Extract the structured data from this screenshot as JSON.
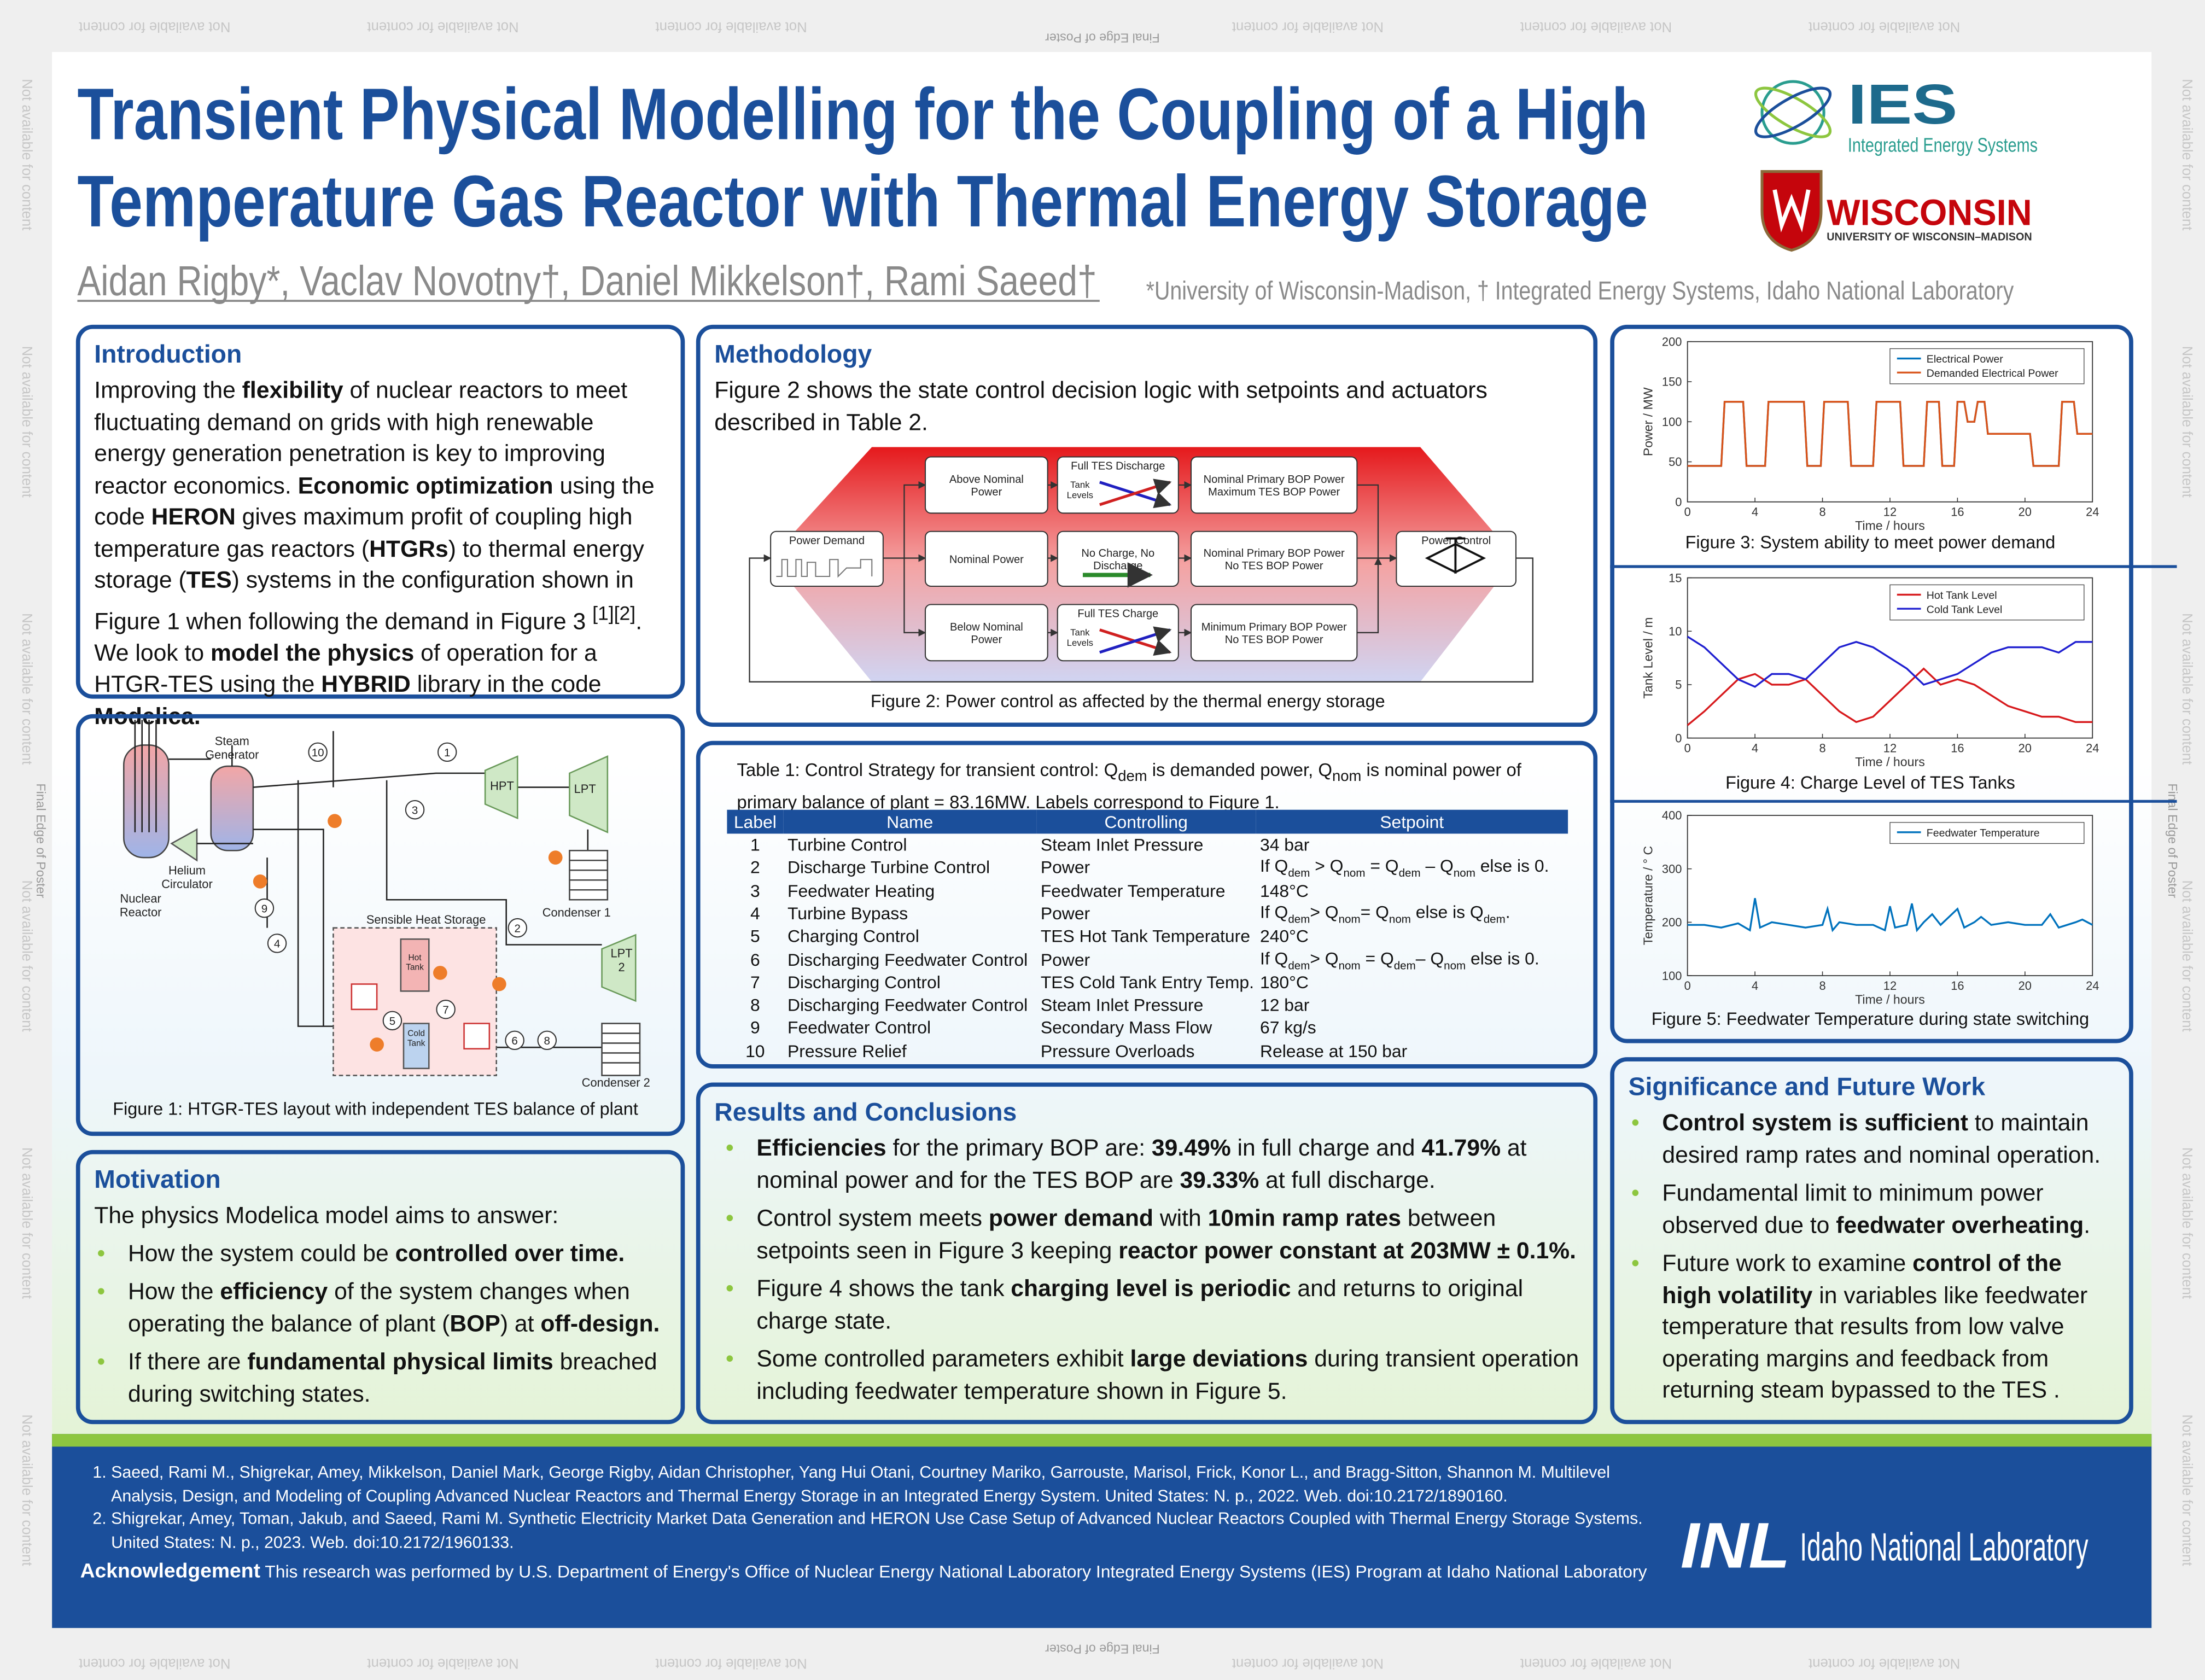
{
  "margins": {
    "edge": "Final Edge of Poster",
    "note": "Not available for content"
  },
  "header": {
    "title_line1": "Transient Physical Modelling for the Coupling of a High",
    "title_line2": "Temperature Gas Reactor with Thermal Energy Storage",
    "authors": "Aidan Rigby*, Vaclav Novotny†, Daniel Mikkelson†, Rami Saeed†",
    "affiliations": "*University of Wisconsin-Madison, † Integrated Energy Systems, Idaho National Laboratory",
    "ies_logo": "IES",
    "ies_name": "Integrated Energy Systems",
    "uw_logo": "WISCONSIN",
    "uw_name": "UNIVERSITY OF WISCONSIN–MADISON"
  },
  "introduction": {
    "heading": "Introduction",
    "body": [
      "Improving the ",
      {
        "bold": "flexibility"
      },
      " of nuclear reactors to meet fluctuating demand on grids with high renewable energy generation penetration is key to improving reactor economics. ",
      {
        "bold": "Economic optimization"
      },
      " using the code ",
      {
        "bold": "HERON"
      },
      " gives maximum profit of coupling high temperature gas reactors (",
      {
        "bold": "HTGRs"
      },
      ") to thermal energy storage (",
      {
        "bold": "TES"
      },
      ") systems in the configuration shown in Figure 1 when following the demand in Figure 3 ",
      {
        "sup": "[1][2]"
      },
      ". We look to ",
      {
        "bold": "model the physics"
      },
      " of operation for a HTGR-TES using the ",
      {
        "bold": "HYBRID"
      },
      " library in the code ",
      {
        "bold": "Modelica."
      }
    ]
  },
  "figure1": {
    "caption": "Figure 1: HTGR-TES layout with independent TES balance of plant",
    "labels": [
      [
        "Steam",
        "Generator"
      ],
      [
        "Helium",
        "Circulator"
      ],
      [
        "Nuclear",
        "Reactor"
      ],
      [
        "HPT"
      ],
      [
        "LPT"
      ],
      [
        "Condenser 1"
      ],
      [
        "Sensible Heat Storage"
      ],
      [
        "Hot",
        "Tank"
      ],
      [
        "Cold",
        "Tank"
      ],
      [
        "LPT",
        "2"
      ],
      [
        "Condenser 2"
      ]
    ],
    "valves": [
      1,
      2,
      3,
      4,
      5,
      6,
      7,
      8,
      9,
      10
    ]
  },
  "motivation": {
    "heading": "Motivation",
    "intro": "The physics Modelica model aims to answer:",
    "bullets": [
      [
        "How the system could be ",
        {
          "bold": "controlled over time."
        }
      ],
      [
        "How the ",
        {
          "bold": "efficiency"
        },
        " of the system changes when operating the balance of plant (",
        {
          "bold": "BOP"
        },
        ") at ",
        {
          "bold": "off-design."
        }
      ],
      [
        "If there are ",
        {
          "bold": "fundamental physical limits"
        },
        " breached during switching states."
      ]
    ]
  },
  "methodology": {
    "heading": "Methodology",
    "body": "Figure 2 shows the state control decision logic with setpoints and actuators described in Table 2.",
    "caption": "Figure 2: Power control as affected by the thermal energy storage",
    "nodes": [
      [
        "Power Demand"
      ],
      [
        "Above Nominal",
        "Power"
      ],
      [
        "Nominal Power"
      ],
      [
        "Below Nominal",
        "Power"
      ],
      [
        "Full TES Discharge"
      ],
      [
        "No Charge, No",
        "Discharge"
      ],
      [
        "Full TES Charge"
      ],
      [
        "Nominal Primary BOP Power",
        "Maximum TES BOP Power"
      ],
      [
        "Nominal Primary BOP Power",
        "No TES BOP Power"
      ],
      [
        "Minimum Primary BOP Power",
        "No TES BOP Power"
      ],
      [
        "Power Control"
      ]
    ],
    "tank_levels": [
      "Tank",
      "Levels"
    ]
  },
  "table": {
    "caption": [
      "Table 1: Control Strategy for transient control: Q",
      {
        "sub": "dem"
      },
      " is demanded power, Q",
      {
        "sub": "nom"
      },
      " is nominal power of primary balance of plant = 83.16MW. Labels correspond to Figure 1."
    ],
    "header": [
      "Label",
      "Name",
      "Controlling",
      "Setpoint"
    ],
    "rows": [
      [
        1,
        "Turbine Control",
        "Steam Inlet Pressure",
        "34 bar"
      ],
      [
        2,
        "Discharge Turbine Control",
        "Power",
        [
          "If Q",
          {
            "sub": "dem"
          },
          " > Q",
          {
            "sub": "nom"
          },
          " = Q",
          {
            "sub": "dem"
          },
          " – Q",
          {
            "sub": "nom"
          },
          " else is 0."
        ]
      ],
      [
        3,
        "Feedwater Heating",
        "Feedwater Temperature",
        "148°C"
      ],
      [
        4,
        "Turbine Bypass",
        "Power",
        [
          "If Q",
          {
            "sub": "dem"
          },
          "> Q",
          {
            "sub": "nom"
          },
          "= Q",
          {
            "sub": "nom"
          },
          " else is Q",
          {
            "sub": "dem"
          },
          "."
        ]
      ],
      [
        5,
        "Charging Control",
        "TES Hot Tank Temperature",
        "240°C"
      ],
      [
        6,
        "Discharging Feedwater Control",
        "Power",
        [
          "If Q",
          {
            "sub": "dem"
          },
          "> Q",
          {
            "sub": "nom"
          },
          " = Q",
          {
            "sub": "dem"
          },
          "– Q",
          {
            "sub": "nom"
          },
          " else is 0."
        ]
      ],
      [
        7,
        "Discharging Control",
        "TES Cold Tank Entry Temp.",
        "180°C"
      ],
      [
        8,
        "Discharging Feedwater Control",
        "Steam Inlet Pressure",
        "12 bar"
      ],
      [
        9,
        "Feedwater Control",
        "Secondary Mass Flow",
        "67 kg/s"
      ],
      [
        10,
        "Pressure Relief",
        "Pressure Overloads",
        "Release at 150 bar"
      ]
    ]
  },
  "results": {
    "heading": "Results and Conclusions",
    "bullets": [
      [
        {
          "bold": "Efficiencies"
        },
        " for the primary BOP are: ",
        {
          "bold": "39.49%"
        },
        " in full charge and ",
        {
          "bold": "41.79%"
        },
        " at nominal power and for the TES BOP are ",
        {
          "bold": "39.33%"
        },
        " at full discharge."
      ],
      [
        "Control system meets ",
        {
          "bold": "power demand"
        },
        " with ",
        {
          "bold": "10min ramp rates"
        },
        " between setpoints seen in Figure 3 keeping ",
        {
          "bold": "reactor power constant at 203MW ± 0.1%."
        }
      ],
      [
        "Figure 4 shows the tank ",
        {
          "bold": "charging level is periodic"
        },
        " and returns to original charge state."
      ],
      [
        "Some controlled parameters exhibit ",
        {
          "bold": "large deviations"
        },
        " during transient operation including feedwater temperature shown in Figure 5."
      ]
    ]
  },
  "significance": {
    "heading": "Significance and Future Work",
    "bullets": [
      [
        {
          "bold": "Control system is sufficient"
        },
        " to maintain desired ramp rates and nominal operation."
      ],
      [
        "Fundamental limit to minimum power observed due to ",
        {
          "bold": "feedwater overheating"
        },
        "."
      ],
      [
        "Future work to examine ",
        {
          "bold": "control of the high volatility"
        },
        " in variables like feedwater temperature that results from low valve operating margins and feedback from returning steam bypassed to the TES ."
      ]
    ]
  },
  "chart_data": [
    {
      "type": "line",
      "caption": "Figure 3: System ability to meet power demand",
      "xlabel": "Time / hours",
      "ylabel": "Power / MW",
      "x": [
        0,
        2.0,
        2.2,
        3.3,
        3.5,
        4.6,
        4.8,
        6.9,
        7.1,
        7.9,
        8.1,
        9.5,
        9.7,
        11.0,
        11.2,
        12.6,
        12.8,
        14.0,
        14.2,
        14.9,
        15.1,
        15.8,
        16.0,
        16.4,
        16.6,
        17.0,
        17.2,
        17.6,
        17.8,
        19.6,
        19.8,
        20.3,
        20.5,
        22.0,
        22.2,
        22.9,
        23.1,
        24
      ],
      "series": [
        {
          "name": "Electrical Power",
          "color": "#0072bd",
          "values": [
            45,
            45,
            125,
            125,
            45,
            45,
            125,
            125,
            45,
            45,
            125,
            125,
            45,
            45,
            125,
            125,
            45,
            45,
            125,
            125,
            45,
            45,
            125,
            125,
            100,
            100,
            125,
            125,
            85,
            85,
            85,
            85,
            45,
            45,
            125,
            125,
            85,
            85
          ]
        },
        {
          "name": "Demanded Electrical Power",
          "color": "#d95319",
          "values": [
            45,
            45,
            125,
            125,
            45,
            45,
            125,
            125,
            45,
            45,
            125,
            125,
            45,
            45,
            125,
            125,
            45,
            45,
            125,
            125,
            45,
            45,
            125,
            125,
            100,
            100,
            125,
            125,
            85,
            85,
            85,
            85,
            45,
            45,
            125,
            125,
            85,
            85
          ]
        }
      ],
      "xlim": [
        0,
        24
      ],
      "ylim": [
        0,
        200
      ],
      "xticks": [
        0,
        4,
        8,
        12,
        16,
        20,
        24
      ],
      "yticks": [
        0,
        50,
        100,
        150,
        200
      ],
      "legend": "upper right"
    },
    {
      "type": "line",
      "caption": "Figure 4: Charge Level of TES Tanks",
      "xlabel": "Time / hours",
      "ylabel": "Tank Level / m",
      "x": [
        0,
        1,
        2,
        3,
        4,
        5,
        6,
        7,
        8,
        9,
        10,
        11,
        12,
        13,
        14,
        15,
        16,
        17,
        18,
        19,
        20,
        21,
        22,
        23,
        24
      ],
      "series": [
        {
          "name": "Hot Tank Level",
          "color": "#d7191c",
          "values": [
            1.2,
            2.5,
            4,
            5.5,
            6,
            5,
            5,
            5.5,
            4,
            2.5,
            1.5,
            2,
            3.5,
            5,
            6.5,
            5,
            5.5,
            5,
            4,
            3,
            2.5,
            2,
            2,
            1.5,
            1.5
          ]
        },
        {
          "name": "Cold Tank Level",
          "color": "#1f1fd0",
          "values": [
            9.5,
            8.5,
            7,
            5.5,
            4.8,
            6,
            6,
            5.5,
            7,
            8.5,
            9,
            8.5,
            7.5,
            6.5,
            5,
            5.5,
            6,
            7,
            8,
            8.5,
            8.5,
            8.5,
            8,
            9,
            9
          ]
        }
      ],
      "xlim": [
        0,
        24
      ],
      "ylim": [
        0,
        15
      ],
      "xticks": [
        0,
        4,
        8,
        12,
        16,
        20,
        24
      ],
      "yticks": [
        0,
        5,
        10,
        15
      ],
      "legend": "upper right"
    },
    {
      "type": "line",
      "caption": "Figure 5: Feedwater Temperature during state switching",
      "xlabel": "Time / hours",
      "ylabel": "Temperature / ° C",
      "x": [
        0,
        1,
        2,
        3,
        3.7,
        4,
        4.3,
        5,
        6,
        7,
        8,
        8.3,
        8.6,
        9,
        10,
        11,
        11.7,
        12,
        12.3,
        13,
        13.3,
        13.6,
        14,
        14.5,
        15,
        16,
        16.4,
        17,
        17.4,
        18,
        19,
        20,
        21,
        21.5,
        22,
        23,
        23.4,
        24
      ],
      "series": [
        {
          "name": "Feedwater Temperature",
          "color": "#0072bd",
          "values": [
            195,
            195,
            190,
            198,
            185,
            245,
            190,
            200,
            195,
            190,
            195,
            225,
            185,
            200,
            195,
            195,
            185,
            230,
            190,
            195,
            235,
            185,
            200,
            215,
            195,
            225,
            190,
            200,
            210,
            195,
            200,
            195,
            195,
            215,
            190,
            200,
            205,
            195
          ]
        }
      ],
      "xlim": [
        0,
        24
      ],
      "ylim": [
        100,
        400
      ],
      "xticks": [
        0,
        4,
        8,
        12,
        16,
        20,
        24
      ],
      "yticks": [
        100,
        200,
        300,
        400
      ],
      "legend": "upper right"
    }
  ],
  "footer": {
    "references": [
      "Saeed, Rami M., Shigrekar, Amey, Mikkelson, Daniel Mark, George Rigby, Aidan Christopher, Yang Hui Otani, Courtney Mariko, Garrouste, Marisol, Frick, Konor L., and Bragg-Sitton, Shannon M. Multilevel Analysis, Design, and Modeling of Coupling Advanced Nuclear Reactors and Thermal Energy Storage in an Integrated Energy System. United States: N. p., 2022. Web. doi:10.2172/1890160.",
      "Shigrekar, Amey, Toman, Jakub, and Saeed, Rami M. Synthetic Electricity Market Data Generation and HERON Use Case Setup of Advanced Nuclear Reactors Coupled with Thermal Energy Storage Systems. United States: N. p., 2023. Web. doi:10.2172/1960133."
    ],
    "ack_heading": "Acknowledgement",
    "ack_text": "This research was performed by U.S. Department of Energy's Office of Nuclear Energy National Laboratory Integrated Energy Systems (IES) Program at Idaho National Laboratory",
    "inl_logo": "INL",
    "inl_name": "Idaho National Laboratory"
  }
}
